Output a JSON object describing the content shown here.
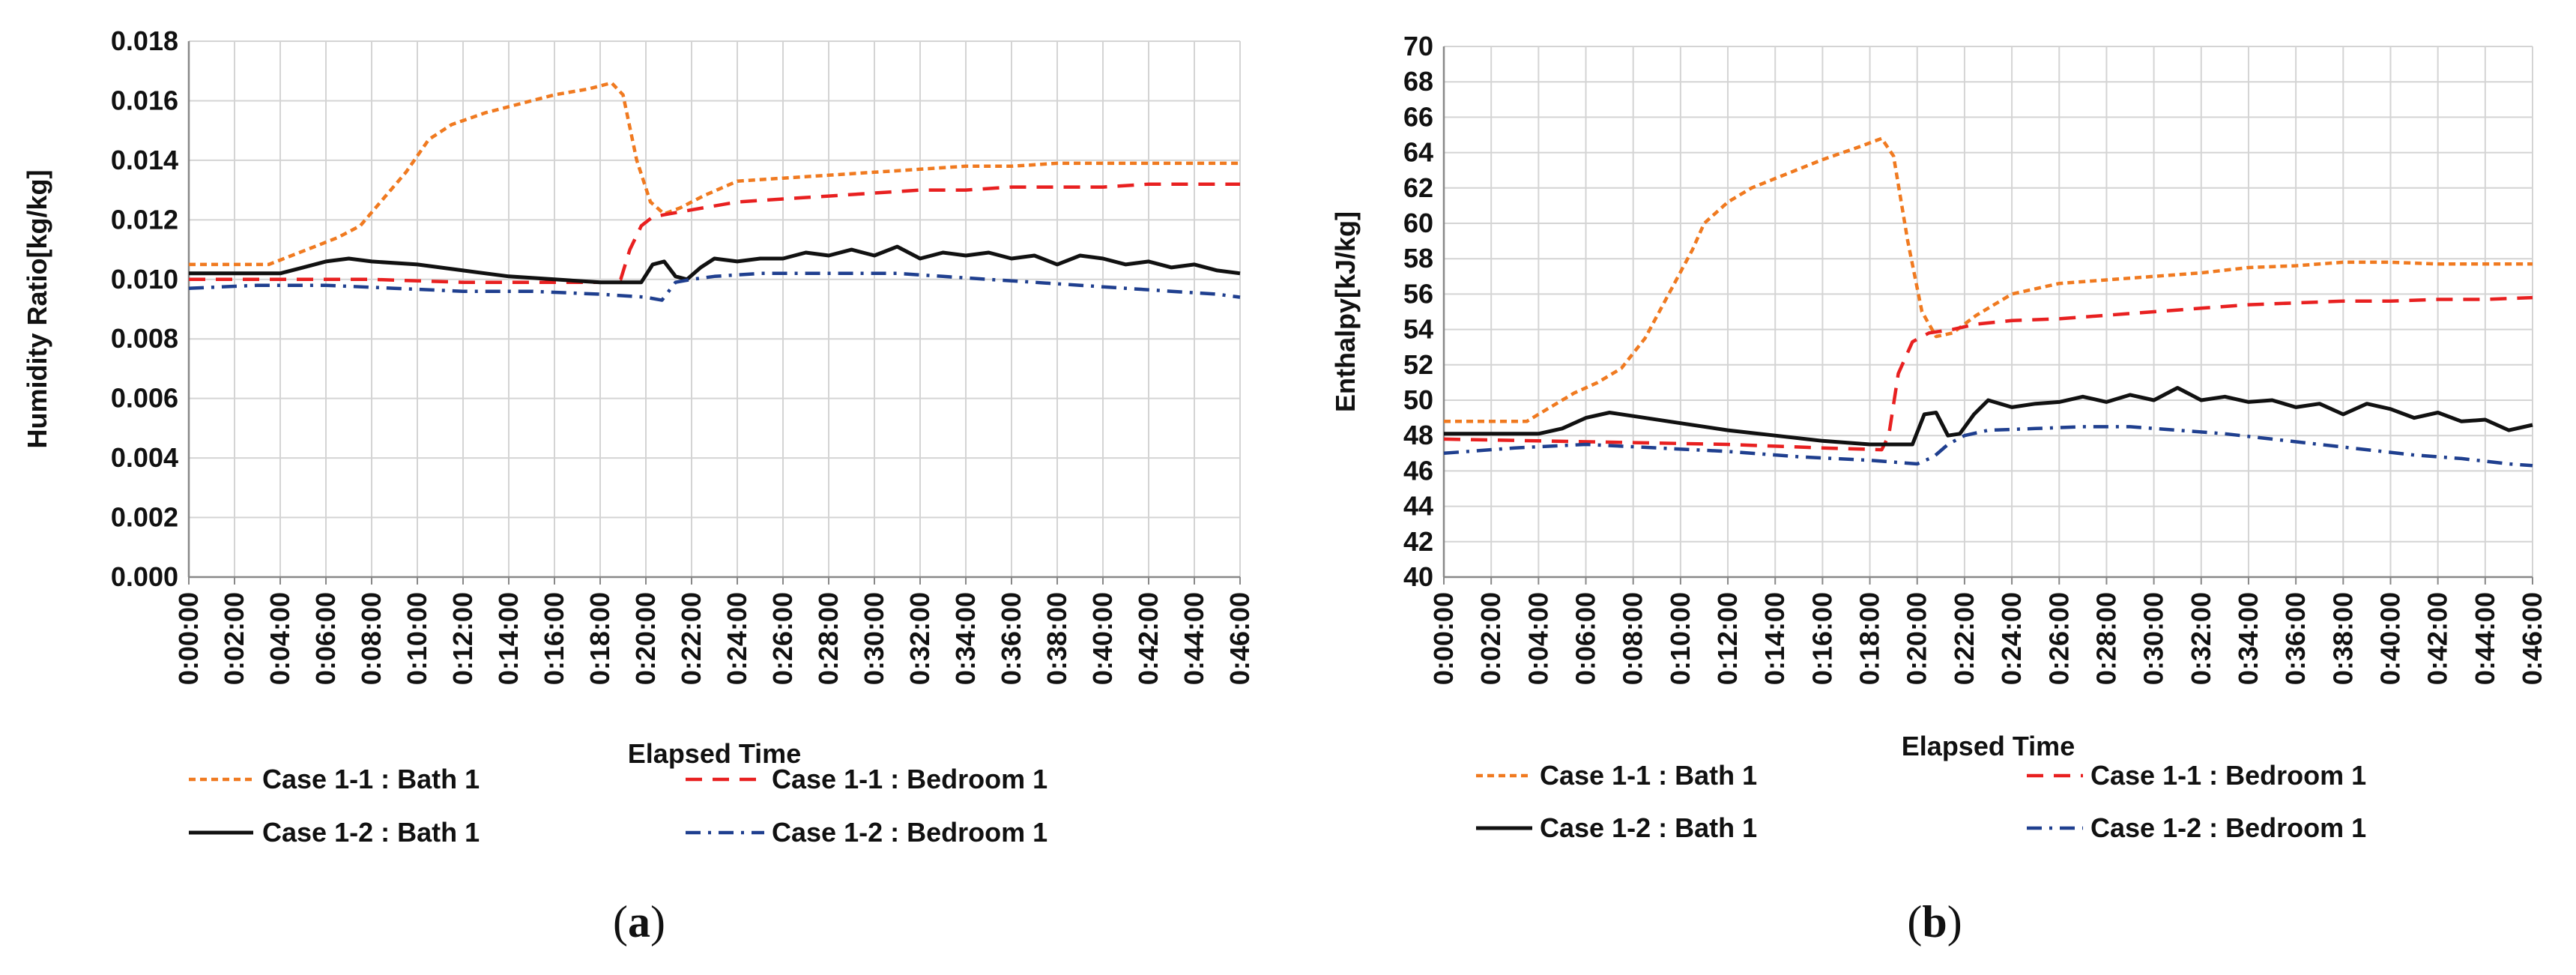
{
  "chart_data": [
    {
      "type": "line",
      "panel_label": "a",
      "title": "",
      "xlabel": "Elapsed Time",
      "ylabel": "Humidity Ratio[kg/kg]",
      "ylim": [
        0,
        0.018
      ],
      "yticks": [
        "0.000",
        "0.002",
        "0.004",
        "0.006",
        "0.008",
        "0.010",
        "0.012",
        "0.014",
        "0.016",
        "0.018"
      ],
      "xticks": [
        "0:00:00",
        "0:02:00",
        "0:04:00",
        "0:06:00",
        "0:08:00",
        "0:10:00",
        "0:12:00",
        "0:14:00",
        "0:16:00",
        "0:18:00",
        "0:20:00",
        "0:22:00",
        "0:24:00",
        "0:26:00",
        "0:28:00",
        "0:30:00",
        "0:32:00",
        "0:34:00",
        "0:36:00",
        "0:38:00",
        "0:40:00",
        "0:42:00",
        "0:44:00",
        "0:46:00"
      ],
      "xlim_minutes": [
        0,
        46
      ],
      "grid": true,
      "legend_position": "bottom",
      "series": [
        {
          "name": "Case 1-1 : Bath 1",
          "color": "#f07a20",
          "dash": "dashed-short",
          "x": [
            0,
            2,
            3.5,
            4.5,
            5.5,
            6.5,
            7.5,
            8.5,
            9.5,
            10.5,
            11.5,
            13,
            14.5,
            16,
            17.5,
            18.5,
            19,
            19.6,
            20.2,
            20.8,
            21.5,
            22.5,
            24,
            26,
            28,
            30,
            32,
            34,
            36,
            38,
            40,
            42,
            44,
            46
          ],
          "y": [
            0.0105,
            0.0105,
            0.0105,
            0.0108,
            0.0111,
            0.0114,
            0.0118,
            0.0127,
            0.0136,
            0.0147,
            0.0152,
            0.0156,
            0.0159,
            0.0162,
            0.0164,
            0.0166,
            0.0162,
            0.014,
            0.0126,
            0.0122,
            0.0124,
            0.0128,
            0.0133,
            0.0134,
            0.0135,
            0.0136,
            0.0137,
            0.0138,
            0.0138,
            0.0139,
            0.0139,
            0.0139,
            0.0139,
            0.0139
          ]
        },
        {
          "name": "Case 1-1 : Bedroom 1",
          "color": "#e82020",
          "dash": "dashed-long",
          "x": [
            0,
            4,
            8,
            12,
            16,
            18.5,
            18.9,
            19.3,
            19.8,
            20.3,
            21,
            22.5,
            24,
            26,
            28,
            30,
            32,
            34,
            36,
            38,
            40,
            42,
            44,
            46
          ],
          "y": [
            0.01,
            0.01,
            0.01,
            0.0099,
            0.0099,
            0.0099,
            0.01,
            0.011,
            0.0118,
            0.0121,
            0.0122,
            0.0124,
            0.0126,
            0.0127,
            0.0128,
            0.0129,
            0.013,
            0.013,
            0.0131,
            0.0131,
            0.0131,
            0.0132,
            0.0132,
            0.0132
          ]
        },
        {
          "name": "Case 1-2 : Bath 1",
          "color": "#111111",
          "dash": "solid",
          "x": [
            0,
            2,
            4,
            5,
            6,
            7,
            8,
            10,
            12,
            14,
            16,
            18,
            19,
            19.8,
            20.3,
            20.8,
            21.3,
            21.8,
            22.4,
            23,
            24,
            25,
            26,
            27,
            28,
            29,
            30,
            31,
            32,
            33,
            34,
            35,
            36,
            37,
            38,
            39,
            40,
            41,
            42,
            43,
            44,
            45,
            46
          ],
          "y": [
            0.0102,
            0.0102,
            0.0102,
            0.0104,
            0.0106,
            0.0107,
            0.0106,
            0.0105,
            0.0103,
            0.0101,
            0.01,
            0.0099,
            0.0099,
            0.0099,
            0.0105,
            0.0106,
            0.0101,
            0.01,
            0.0104,
            0.0107,
            0.0106,
            0.0107,
            0.0107,
            0.0109,
            0.0108,
            0.011,
            0.0108,
            0.0111,
            0.0107,
            0.0109,
            0.0108,
            0.0109,
            0.0107,
            0.0108,
            0.0105,
            0.0108,
            0.0107,
            0.0105,
            0.0106,
            0.0104,
            0.0105,
            0.0103,
            0.0102
          ]
        },
        {
          "name": "Case 1-2 : Bedroom 1",
          "color": "#1f3f8f",
          "dash": "dash-dot",
          "x": [
            0,
            3,
            6,
            9,
            12,
            15,
            18,
            20,
            20.7,
            21.3,
            22,
            23,
            25,
            27,
            29,
            31,
            33,
            35,
            37,
            39,
            41,
            43,
            45,
            46
          ],
          "y": [
            0.0097,
            0.0098,
            0.0098,
            0.0097,
            0.0096,
            0.0096,
            0.0095,
            0.0094,
            0.0093,
            0.0099,
            0.01,
            0.0101,
            0.0102,
            0.0102,
            0.0102,
            0.0102,
            0.0101,
            0.01,
            0.0099,
            0.0098,
            0.0097,
            0.0096,
            0.0095,
            0.0094
          ]
        }
      ]
    },
    {
      "type": "line",
      "panel_label": "b",
      "title": "",
      "xlabel": "Elapsed Time",
      "ylabel": "Enthalpy[kJ/kg]",
      "ylim": [
        40,
        70
      ],
      "yticks": [
        "40",
        "42",
        "44",
        "46",
        "48",
        "50",
        "52",
        "54",
        "56",
        "58",
        "60",
        "62",
        "64",
        "66",
        "68",
        "70"
      ],
      "xticks": [
        "0:00:00",
        "0:02:00",
        "0:04:00",
        "0:06:00",
        "0:08:00",
        "0:10:00",
        "0:12:00",
        "0:14:00",
        "0:16:00",
        "0:18:00",
        "0:20:00",
        "0:22:00",
        "0:24:00",
        "0:26:00",
        "0:28:00",
        "0:30:00",
        "0:32:00",
        "0:34:00",
        "0:36:00",
        "0:38:00",
        "0:40:00",
        "0:42:00",
        "0:44:00",
        "0:46:00"
      ],
      "xlim_minutes": [
        0,
        46
      ],
      "grid": true,
      "legend_position": "bottom",
      "series": [
        {
          "name": "Case 1-1 : Bath 1",
          "color": "#f07a20",
          "dash": "dashed-short",
          "x": [
            0,
            2,
            3.5,
            4.5,
            5.5,
            6.5,
            7.5,
            8.5,
            9.5,
            10.5,
            11,
            12,
            13,
            14.5,
            16,
            17.5,
            18.5,
            19,
            19.6,
            20.2,
            20.8,
            21.5,
            22.5,
            24,
            26,
            28,
            30,
            32,
            34,
            36,
            38,
            40,
            42,
            44,
            46
          ],
          "y": [
            48.8,
            48.8,
            48.8,
            49.6,
            50.4,
            51.0,
            51.8,
            53.5,
            56.0,
            58.5,
            60.0,
            61.2,
            62.0,
            62.8,
            63.6,
            64.3,
            64.8,
            63.8,
            59.0,
            55.0,
            53.6,
            53.8,
            54.8,
            56.0,
            56.6,
            56.8,
            57.0,
            57.2,
            57.5,
            57.6,
            57.8,
            57.8,
            57.7,
            57.7,
            57.7
          ]
        },
        {
          "name": "Case 1-1 : Bedroom 1",
          "color": "#e82020",
          "dash": "dashed-long",
          "x": [
            0,
            4,
            8,
            12,
            16,
            18.5,
            18.8,
            19.2,
            19.8,
            20.5,
            21.5,
            22.5,
            24,
            26,
            28,
            30,
            32,
            34,
            36,
            38,
            40,
            42,
            44,
            46
          ],
          "y": [
            47.8,
            47.7,
            47.6,
            47.5,
            47.3,
            47.2,
            48.0,
            51.5,
            53.3,
            53.8,
            54.0,
            54.3,
            54.5,
            54.6,
            54.8,
            55.0,
            55.2,
            55.4,
            55.5,
            55.6,
            55.6,
            55.7,
            55.7,
            55.8
          ]
        },
        {
          "name": "Case 1-2 : Bath 1",
          "color": "#111111",
          "dash": "solid",
          "x": [
            0,
            2,
            4,
            5,
            6,
            7,
            8,
            10,
            12,
            14,
            16,
            18,
            19,
            19.8,
            20.3,
            20.8,
            21.3,
            21.8,
            22.4,
            23,
            24,
            25,
            26,
            27,
            28,
            29,
            30,
            31,
            32,
            33,
            34,
            35,
            36,
            37,
            38,
            39,
            40,
            41,
            42,
            43,
            44,
            45,
            46
          ],
          "y": [
            48.1,
            48.1,
            48.1,
            48.4,
            49.0,
            49.3,
            49.1,
            48.7,
            48.3,
            48.0,
            47.7,
            47.5,
            47.5,
            47.5,
            49.2,
            49.3,
            48.0,
            48.1,
            49.2,
            50.0,
            49.6,
            49.8,
            49.9,
            50.2,
            49.9,
            50.3,
            50.0,
            50.7,
            50.0,
            50.2,
            49.9,
            50.0,
            49.6,
            49.8,
            49.2,
            49.8,
            49.5,
            49.0,
            49.3,
            48.8,
            48.9,
            48.3,
            48.6
          ]
        },
        {
          "name": "Case 1-2 : Bedroom 1",
          "color": "#1f3f8f",
          "dash": "dash-dot",
          "x": [
            0,
            3,
            6,
            9,
            12,
            15,
            18,
            20,
            20.7,
            21.3,
            22,
            23,
            25,
            27,
            29,
            31,
            33,
            35,
            37,
            39,
            41,
            43,
            45,
            46
          ],
          "y": [
            47.0,
            47.3,
            47.5,
            47.3,
            47.1,
            46.8,
            46.6,
            46.4,
            46.8,
            47.5,
            48.0,
            48.3,
            48.4,
            48.5,
            48.5,
            48.3,
            48.1,
            47.8,
            47.5,
            47.2,
            46.9,
            46.7,
            46.4,
            46.3
          ]
        }
      ]
    }
  ]
}
